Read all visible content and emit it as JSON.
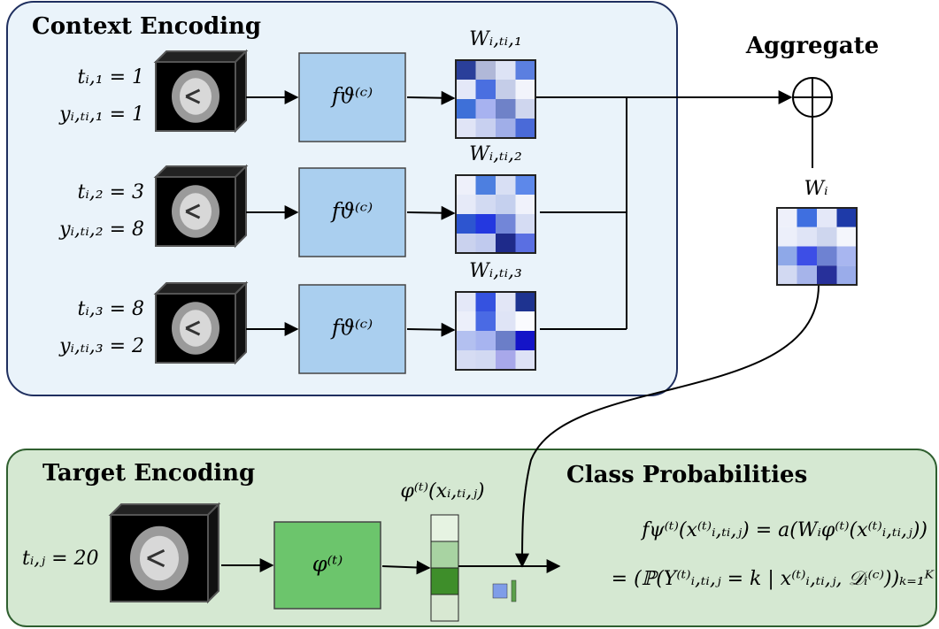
{
  "context": {
    "title": "Context Encoding",
    "rows": [
      {
        "t": "tᵢ,₁ = 1",
        "y": "yᵢ,ₜᵢ,₁ = 1",
        "encoder": "fϑ⁽ᶜ⁾",
        "weights": "Wᵢ,ₜᵢ,₁"
      },
      {
        "t": "tᵢ,₂ = 3",
        "y": "yᵢ,ₜᵢ,₂ = 8",
        "encoder": "fϑ⁽ᶜ⁾",
        "weights": "Wᵢ,ₜᵢ,₂"
      },
      {
        "t": "tᵢ,₃ = 8",
        "y": "yᵢ,ₜᵢ,₃ = 2",
        "encoder": "fϑ⁽ᶜ⁾",
        "weights": "Wᵢ,ₜᵢ,₃"
      }
    ]
  },
  "aggregate": {
    "label": "Aggregate",
    "weights": "Wᵢ"
  },
  "target": {
    "title": "Target Encoding",
    "t": "tᵢ,ⱼ = 20",
    "encoder": "φ⁽ᵗ⁾",
    "feature": "φ⁽ᵗ⁾(xᵢ,ₜᵢ,ⱼ)"
  },
  "output": {
    "title": "Class Probabilities",
    "line1": "fψ⁽ᵗ⁾(x⁽ᵗ⁾ᵢ,ₜᵢ,ⱼ) = a(Wᵢφ⁽ᵗ⁾(x⁽ᵗ⁾ᵢ,ₜᵢ,ⱼ))",
    "line2": "= (ℙ(Y⁽ᵗ⁾ᵢ,ₜᵢ,ⱼ = k | x⁽ᵗ⁾ᵢ,ₜᵢ,ⱼ, 𝒟ᵢ⁽ᶜ⁾))ₖ₌₁ᴷ"
  }
}
